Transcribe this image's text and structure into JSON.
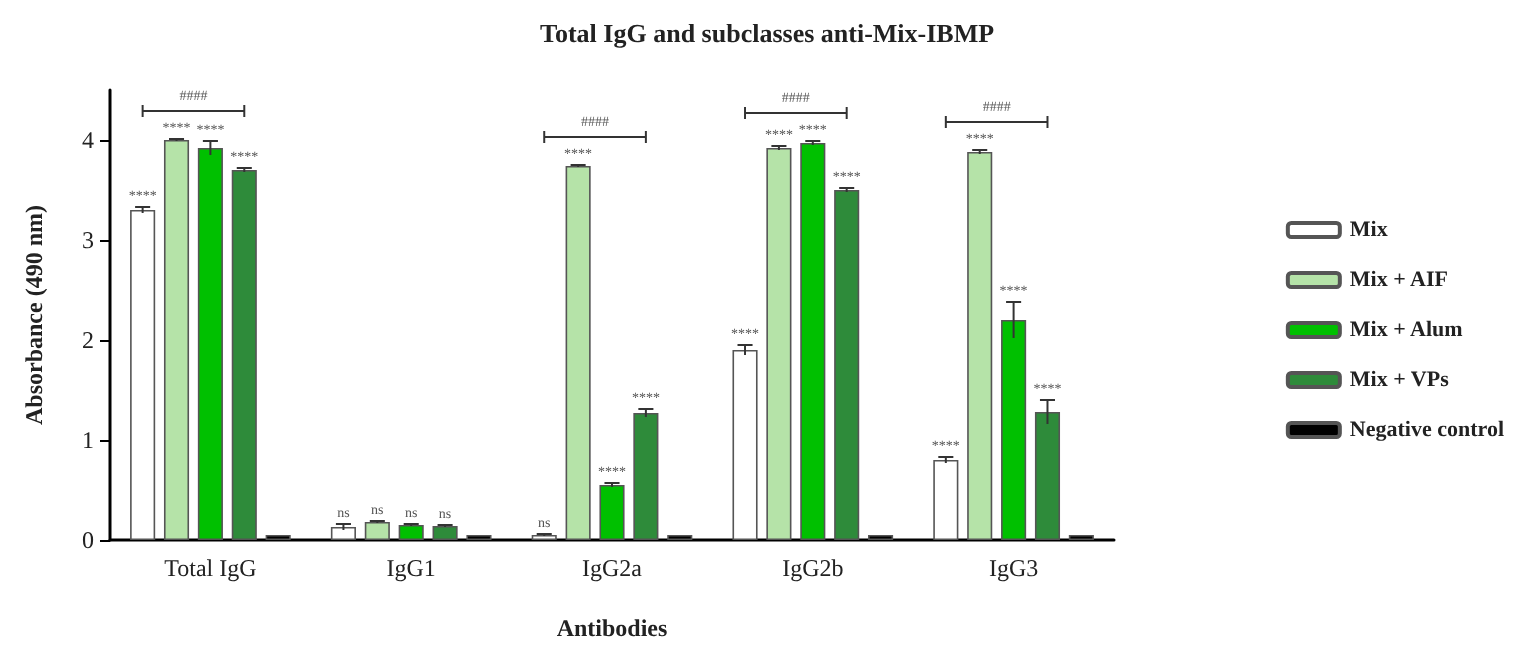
{
  "chart_data": {
    "type": "bar",
    "title": "Total IgG and subclasses anti-Mix-IBMP",
    "xlabel": "Antibodies",
    "ylabel": "Absorbance (490 nm)",
    "categories": [
      "Total IgG",
      "IgG1",
      "IgG2a",
      "IgG2b",
      "IgG3"
    ],
    "series": [
      {
        "name": "Mix",
        "color": "#ffffff",
        "values": [
          3.3,
          0.13,
          0.05,
          1.9,
          0.8
        ],
        "errors": [
          0.03,
          0.03,
          0.01,
          0.05,
          0.03
        ],
        "value_labels": [
          "****",
          "ns",
          "ns",
          "****",
          "****"
        ]
      },
      {
        "name": "Mix + AIF",
        "color": "#b5e3a8",
        "values": [
          4.0,
          0.18,
          3.74,
          3.92,
          3.88
        ],
        "errors": [
          0.01,
          0.01,
          0.01,
          0.02,
          0.02
        ],
        "value_labels": [
          "****",
          "ns",
          "****",
          "****",
          "****"
        ]
      },
      {
        "name": "Mix + Alum",
        "color": "#00c000",
        "values": [
          3.92,
          0.15,
          0.55,
          3.97,
          2.2
        ],
        "errors": [
          0.07,
          0.01,
          0.02,
          0.02,
          0.18
        ],
        "value_labels": [
          "****",
          "ns",
          "****",
          "****",
          "****"
        ]
      },
      {
        "name": "Mix + VPs",
        "color": "#2e8b3a",
        "values": [
          3.7,
          0.14,
          1.27,
          3.5,
          1.28
        ],
        "errors": [
          0.02,
          0.01,
          0.04,
          0.02,
          0.12
        ],
        "value_labels": [
          "****",
          "ns",
          "****",
          "****",
          "****"
        ]
      },
      {
        "name": "Negative control",
        "color": "#000000",
        "values": [
          0.05,
          0.05,
          0.05,
          0.05,
          0.05
        ]
      }
    ],
    "annotations": [
      "####",
      "####",
      "####",
      "####"
    ],
    "ylim": [
      0,
      4.5
    ],
    "yticks": [
      0,
      1,
      2,
      3,
      4
    ],
    "grid": false,
    "legend": "right"
  }
}
